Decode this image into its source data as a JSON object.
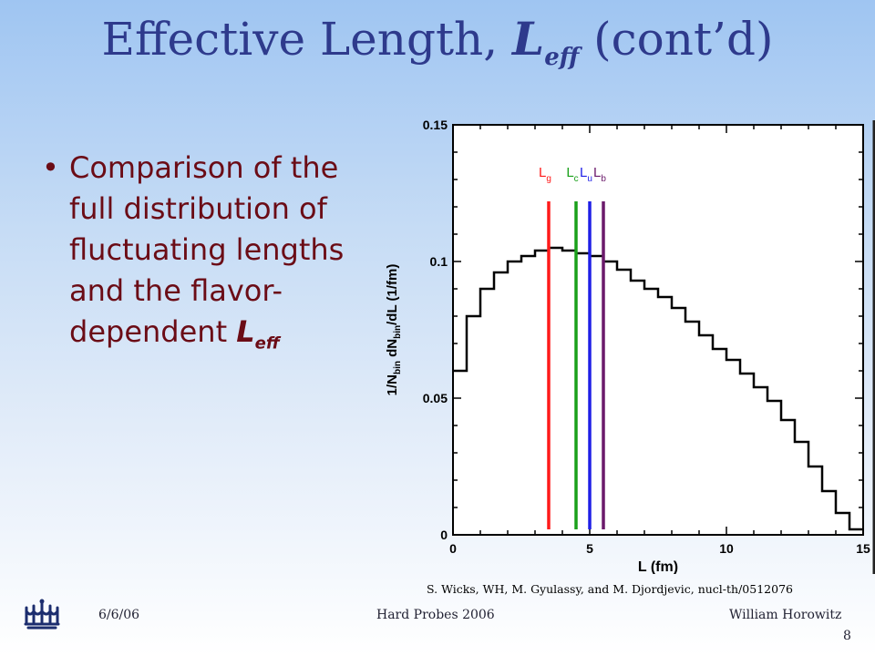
{
  "slide": {
    "title_main": "Effective Length, ",
    "title_symbol": "L",
    "title_subscript": "eff",
    "title_rest": " (cont’d)",
    "bullet_text": "Comparison of the full distribution of fluctuating lengths and the flavor-dependent ",
    "bullet_symbol": "L",
    "bullet_subscript": "eff",
    "citation": "S. Wicks, WH, M. Gyulassy, and M. Djordjevic, nucl-th/0512076",
    "footer_date": "6/6/06",
    "footer_center": "Hard Probes 2006",
    "footer_author": "William Horowitz",
    "page_number": "8"
  },
  "colors": {
    "title": "#2e3a8c",
    "bullet": "#6b0c16",
    "logo": "#1c2d6e"
  },
  "chart_data": {
    "type": "line",
    "step": true,
    "xlabel": "L (fm)",
    "ylabel_parts": [
      "1/N",
      "bin",
      " dN",
      "bin",
      "/dL (1/fm)"
    ],
    "xlim": [
      0,
      15
    ],
    "ylim": [
      0,
      0.15
    ],
    "xticks": [
      0,
      5,
      10,
      15
    ],
    "xtick_labels": [
      "0",
      "5",
      "10",
      "15"
    ],
    "yticks": [
      0,
      0.05,
      0.1,
      0.15
    ],
    "ytick_labels": [
      "0",
      "0.05",
      "0.1",
      "0.15"
    ],
    "histogram": {
      "bin_width": 0.5,
      "values": [
        0.06,
        0.08,
        0.09,
        0.096,
        0.1,
        0.102,
        0.104,
        0.105,
        0.104,
        0.103,
        0.102,
        0.1,
        0.097,
        0.093,
        0.09,
        0.087,
        0.083,
        0.078,
        0.073,
        0.068,
        0.064,
        0.059,
        0.054,
        0.049,
        0.042,
        0.034,
        0.025,
        0.016,
        0.008,
        0.002
      ]
    },
    "vlines": [
      {
        "name": "L",
        "sub": "g",
        "x": 3.5,
        "color": "#ff1a1a"
      },
      {
        "name": "L",
        "sub": "c",
        "x": 4.5,
        "color": "#1aa01a"
      },
      {
        "name": "L",
        "sub": "u",
        "x": 5.0,
        "color": "#1f1fe6"
      },
      {
        "name": "L",
        "sub": "b",
        "x": 5.5,
        "color": "#6b1a6b"
      }
    ],
    "grid": false
  }
}
